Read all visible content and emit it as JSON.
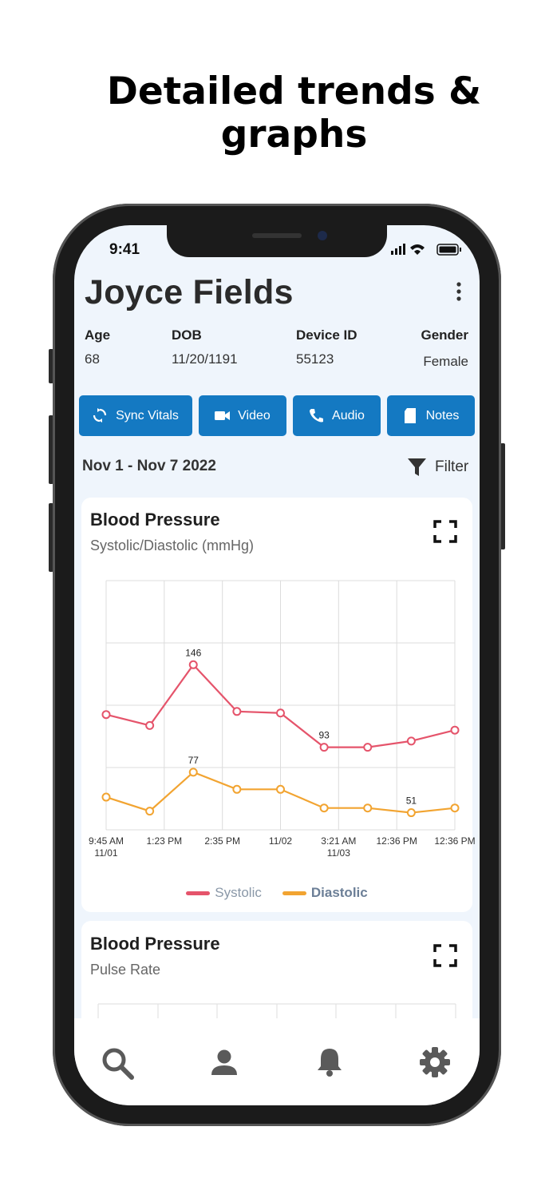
{
  "header": {
    "title": "Detailed trends & graphs"
  },
  "status_bar": {
    "time": "9:41"
  },
  "patient": {
    "name": "Joyce Fields",
    "fields": [
      {
        "label": "Age",
        "value": "68"
      },
      {
        "label": "DOB",
        "value": "11/20/1191"
      },
      {
        "label": "Device ID",
        "value": "55123"
      },
      {
        "label": "Gender",
        "value": "Female"
      }
    ]
  },
  "actions": [
    "Sync Vitals",
    "Video",
    "Audio",
    "Notes"
  ],
  "date_range": "Nov 1 - Nov 7 2022",
  "filter": "Filter",
  "cards": [
    {
      "title": "Blood Pressure",
      "subtitle": "Systolic/Diastolic (mmHg)"
    },
    {
      "title": "Blood Pressure",
      "subtitle": "Pulse Rate"
    }
  ],
  "chart_data": {
    "type": "line",
    "x": [
      0,
      1,
      2,
      3,
      4,
      5,
      6,
      7,
      8
    ],
    "series": [
      {
        "name": "Systolic",
        "color": "#e5546b",
        "values": [
          114,
          107,
          146,
          116,
          115,
          93,
          93,
          97,
          104
        ],
        "value_labels": [
          null,
          null,
          146,
          null,
          null,
          93,
          null,
          null,
          null
        ]
      },
      {
        "name": "Diastolic",
        "color": "#f2a431",
        "values": [
          61,
          52,
          77,
          66,
          66,
          54,
          54,
          51,
          54
        ],
        "value_labels": [
          null,
          null,
          77,
          null,
          null,
          null,
          null,
          51,
          null
        ]
      }
    ],
    "xlim": [
      0,
      8
    ],
    "xticks": [
      {
        "value": 0,
        "label": "9:45 AM\n11/01"
      },
      {
        "value": 1.333,
        "label": "1:23 PM"
      },
      {
        "value": 2.667,
        "label": "2:35 PM"
      },
      {
        "value": 4,
        "label": "11/02"
      },
      {
        "value": 5.333,
        "label": "3:21 AM\n11/03"
      },
      {
        "value": 6.667,
        "label": "12:36 PM"
      },
      {
        "value": 8,
        "label": "12:36 PM"
      }
    ],
    "ylim": [
      40,
      200
    ],
    "yticks": [
      40,
      80,
      120,
      160,
      200
    ],
    "grid": true,
    "legend": "bottom"
  }
}
